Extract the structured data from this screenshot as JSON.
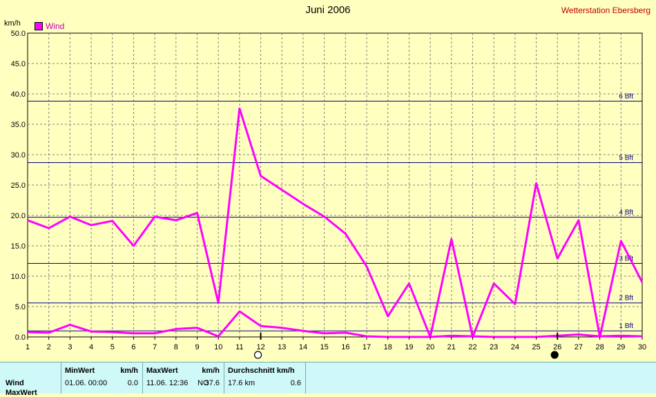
{
  "title": "Juni 2006",
  "station": "Wetterstation Ebersberg",
  "y_unit": "km/h",
  "legend": {
    "label": "Wind",
    "color": "#ff00ff"
  },
  "colors": {
    "background": "#ffffc0",
    "series": "#ff00ff",
    "bft_lines": "#000080",
    "grid": "#808080"
  },
  "chart_data": {
    "type": "line",
    "title": "Juni 2006",
    "ylabel": "km/h",
    "xlabel": "",
    "ylim": [
      0,
      50
    ],
    "xlim": [
      1,
      30
    ],
    "grid": true,
    "legend_position": "top-left",
    "x_ticks": [
      1,
      2,
      3,
      4,
      5,
      6,
      7,
      8,
      9,
      10,
      11,
      12,
      13,
      14,
      15,
      16,
      17,
      18,
      19,
      20,
      21,
      22,
      23,
      24,
      25,
      26,
      27,
      28,
      29,
      30
    ],
    "y_ticks": [
      "0.0",
      "5.0",
      "10.0",
      "15.0",
      "20.0",
      "25.0",
      "30.0",
      "35.0",
      "40.0",
      "45.0",
      "50.0"
    ],
    "x": [
      1,
      2,
      3,
      4,
      5,
      6,
      7,
      8,
      9,
      10,
      11,
      12,
      13,
      14,
      15,
      16,
      17,
      18,
      19,
      20,
      21,
      22,
      23,
      24,
      25,
      26,
      27,
      28,
      29,
      30
    ],
    "series": [
      {
        "name": "Wind",
        "values": [
          19.2,
          17.9,
          19.8,
          18.4,
          19.1,
          15.0,
          19.8,
          19.2,
          20.4,
          5.6,
          37.6,
          26.5,
          24.2,
          21.9,
          19.8,
          17.0,
          11.6,
          3.4,
          8.8,
          0.0,
          16.1,
          0.0,
          8.8,
          5.4,
          25.3,
          12.9,
          19.2,
          0.0,
          15.8,
          9.0
        ]
      },
      {
        "values": [
          0.8,
          0.7,
          2.0,
          0.9,
          0.8,
          0.6,
          0.6,
          1.3,
          1.5,
          0.1,
          4.2,
          1.8,
          1.5,
          1.0,
          0.6,
          0.7,
          0.1,
          0.0,
          0.0,
          0.0,
          0.2,
          0.1,
          0.0,
          0.0,
          0.0,
          0.2,
          0.4,
          0.1,
          0.2,
          0.1
        ]
      }
    ],
    "beaufort": [
      {
        "label": "1 Bft",
        "value": 1.0
      },
      {
        "label": "2 Bft",
        "value": 5.6
      },
      {
        "label": "3 Bft",
        "value": 12.1
      },
      {
        "label": "4 Bft",
        "value": 19.7
      },
      {
        "label": "5 Bft",
        "value": 28.7
      },
      {
        "label": "6 Bft",
        "value": 38.8
      }
    ],
    "moon_phases": [
      {
        "day": 12,
        "phase": "full"
      },
      {
        "day": 26,
        "phase": "new"
      }
    ]
  },
  "table": {
    "headers": {
      "min": "MinWert",
      "min_unit": "km/h",
      "max": "MaxWert",
      "max_unit": "km/h",
      "avg": "Durchschnitt km/h"
    },
    "row_label": "Wind",
    "row2_label": "MaxWert",
    "min_time": "01.06.  00:00",
    "min_value": "0.0",
    "max_time": "11.06.  12:36",
    "max_dir": "NO",
    "max_value": "37.6",
    "avg_value1": "17.6 km",
    "avg_value2": "0.6"
  }
}
